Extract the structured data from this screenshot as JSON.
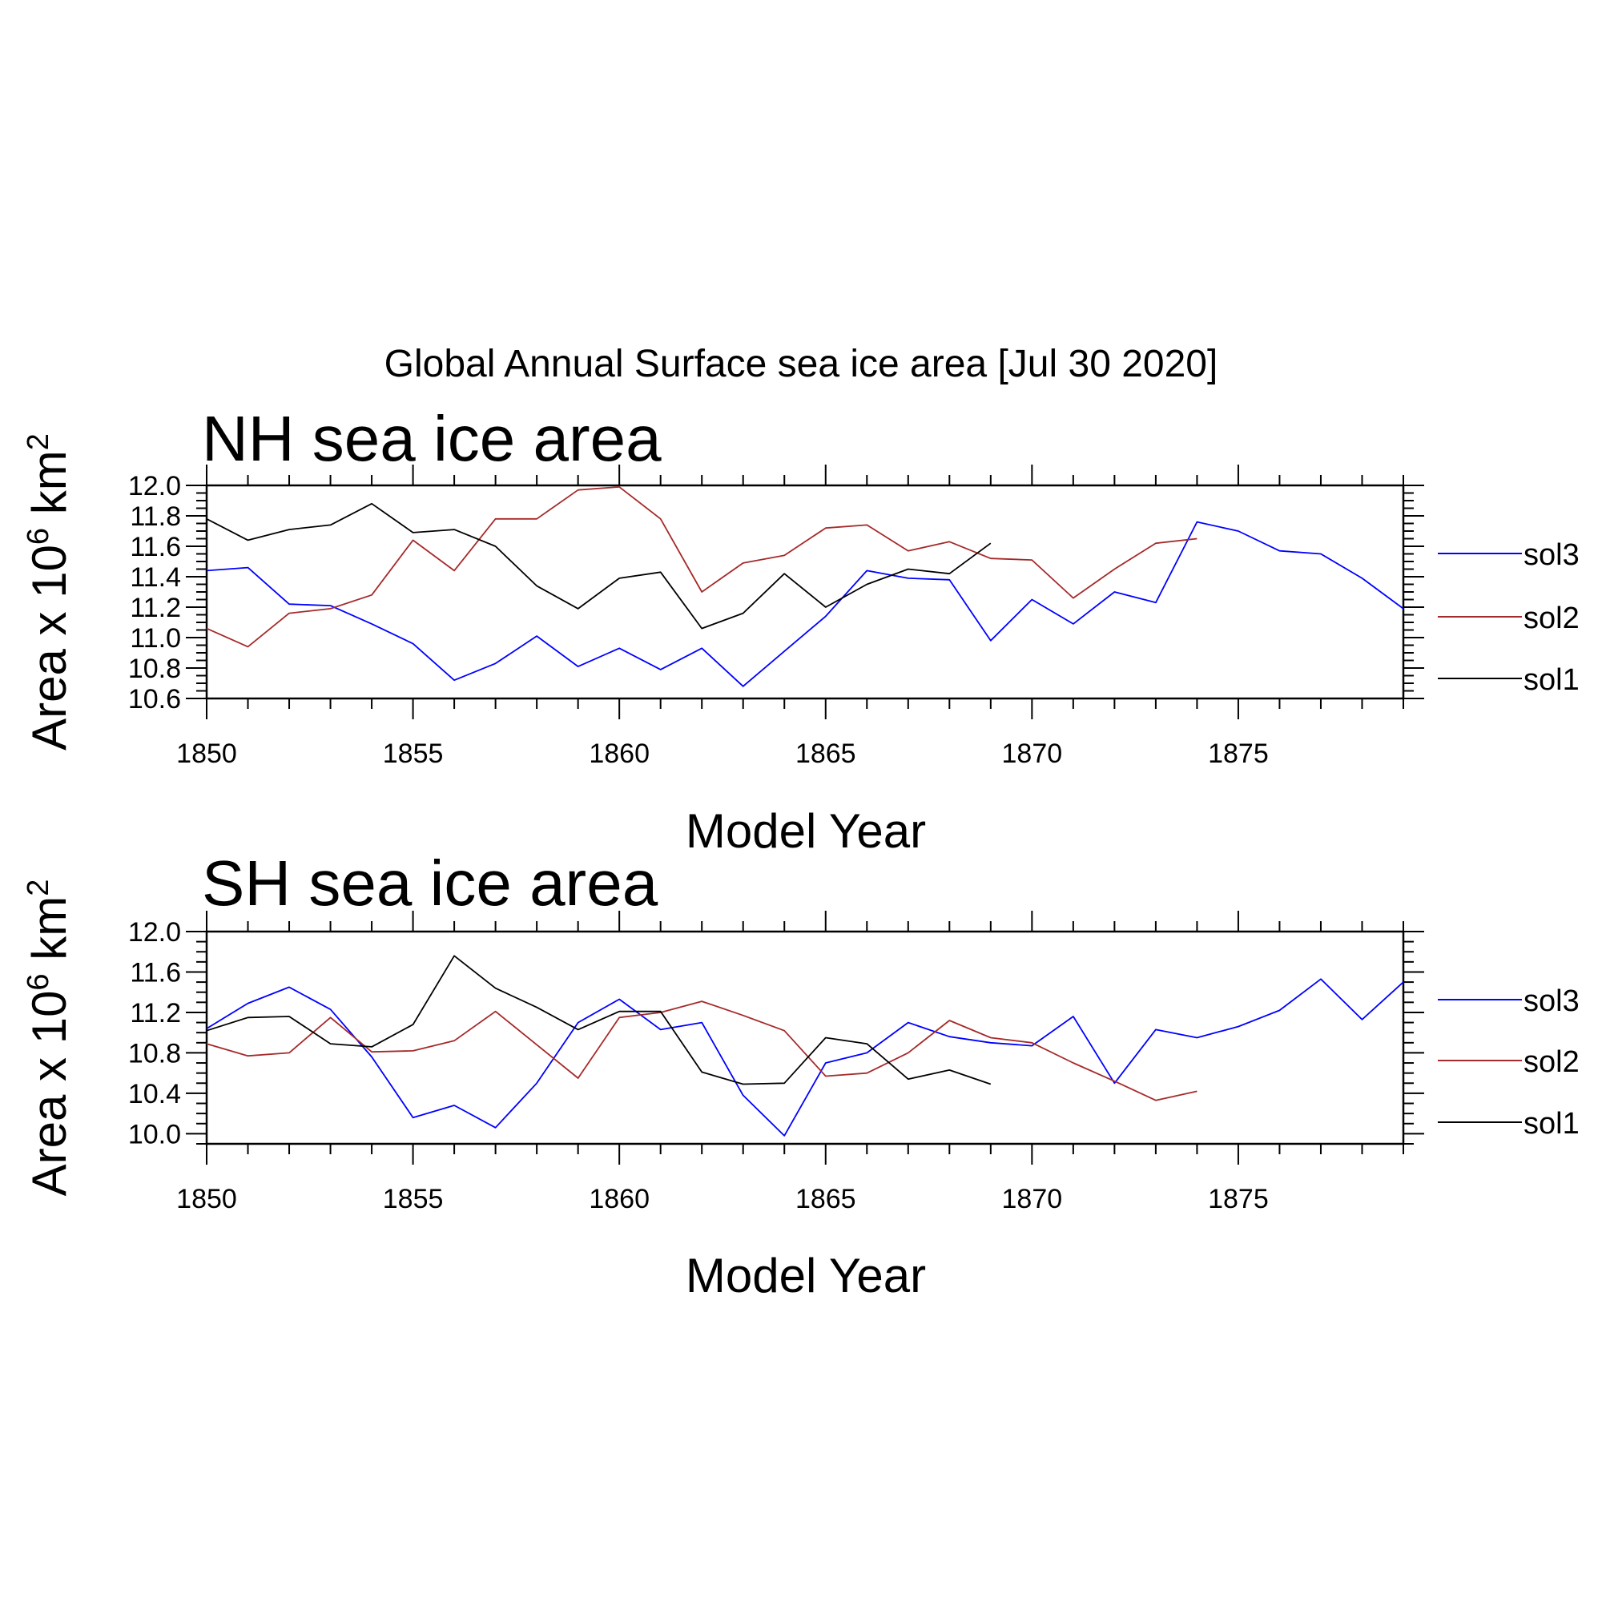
{
  "figure_title": "Global Annual Surface sea ice area [Jul 30 2020]",
  "colors": {
    "sol1": "#000000",
    "sol2": "#a52a2a",
    "sol3": "#0000ff"
  },
  "chart_data": [
    {
      "type": "line",
      "title": "NH sea ice area",
      "xlabel": "Model Year",
      "ylabel": "Area x 10",
      "ylabel_exp": "6",
      "ylabel_unit": " km",
      "ylabel_unit_exp": "2",
      "xlim": [
        1850,
        1879
      ],
      "ylim": [
        10.6,
        12.0
      ],
      "xticks": [
        1850,
        1855,
        1860,
        1865,
        1870,
        1875
      ],
      "xtick_labels": [
        "1850",
        "1855",
        "1860",
        "1865",
        "1870",
        "1875"
      ],
      "yticks": [
        10.6,
        10.8,
        11.0,
        11.2,
        11.4,
        11.6,
        11.8,
        12.0
      ],
      "ytick_labels": [
        "10.6",
        "10.8",
        "11.0",
        "11.2",
        "11.4",
        "11.6",
        "11.8",
        "12.0"
      ],
      "legend": [
        "sol3",
        "sol2",
        "sol1"
      ],
      "series": [
        {
          "name": "sol3",
          "x_start": 1850,
          "values": [
            11.44,
            11.46,
            11.22,
            11.21,
            11.09,
            10.96,
            10.72,
            10.83,
            11.01,
            10.81,
            10.93,
            10.79,
            10.93,
            10.68,
            10.91,
            11.14,
            11.44,
            11.39,
            11.38,
            10.98,
            11.25,
            11.09,
            11.3,
            11.23,
            11.76,
            11.7,
            11.57,
            11.55,
            11.39,
            11.19
          ]
        },
        {
          "name": "sol2",
          "x_start": 1850,
          "values": [
            11.06,
            10.94,
            11.16,
            11.19,
            11.28,
            11.64,
            11.44,
            11.78,
            11.78,
            11.97,
            11.99,
            11.78,
            11.3,
            11.49,
            11.54,
            11.72,
            11.74,
            11.57,
            11.63,
            11.52,
            11.51,
            11.26,
            11.45,
            11.62,
            11.65
          ]
        },
        {
          "name": "sol1",
          "x_start": 1850,
          "values": [
            11.78,
            11.64,
            11.71,
            11.74,
            11.88,
            11.69,
            11.71,
            11.6,
            11.34,
            11.19,
            11.39,
            11.43,
            11.06,
            11.16,
            11.42,
            11.2,
            11.35,
            11.45,
            11.42,
            11.62
          ]
        }
      ]
    },
    {
      "type": "line",
      "title": "SH sea ice area",
      "xlabel": "Model Year",
      "ylabel": "Area x 10",
      "ylabel_exp": "6",
      "ylabel_unit": " km",
      "ylabel_unit_exp": "2",
      "xlim": [
        1850,
        1879
      ],
      "ylim": [
        9.9,
        12.0
      ],
      "xticks": [
        1850,
        1855,
        1860,
        1865,
        1870,
        1875
      ],
      "xtick_labels": [
        "1850",
        "1855",
        "1860",
        "1865",
        "1870",
        "1875"
      ],
      "yticks": [
        10.0,
        10.4,
        10.8,
        11.2,
        11.6,
        12.0
      ],
      "ytick_labels": [
        "10.0",
        "10.4",
        "10.8",
        "11.2",
        "11.6",
        "12.0"
      ],
      "legend": [
        "sol3",
        "sol2",
        "sol1"
      ],
      "series": [
        {
          "name": "sol3",
          "x_start": 1850,
          "values": [
            11.04,
            11.29,
            11.45,
            11.23,
            10.76,
            10.16,
            10.28,
            10.06,
            10.5,
            11.1,
            11.33,
            11.03,
            11.1,
            10.38,
            9.98,
            10.7,
            10.8,
            11.1,
            10.96,
            10.9,
            10.87,
            11.16,
            10.5,
            11.03,
            10.95,
            11.06,
            11.22,
            11.53,
            11.13,
            11.5
          ]
        },
        {
          "name": "sol2",
          "x_start": 1850,
          "values": [
            10.89,
            10.77,
            10.8,
            11.15,
            10.81,
            10.82,
            10.92,
            11.21,
            10.88,
            10.55,
            11.15,
            11.2,
            11.31,
            11.17,
            11.02,
            10.57,
            10.6,
            10.8,
            11.12,
            10.95,
            10.9,
            10.7,
            10.52,
            10.33,
            10.42
          ]
        },
        {
          "name": "sol1",
          "x_start": 1850,
          "values": [
            11.02,
            11.15,
            11.16,
            10.89,
            10.86,
            11.08,
            11.76,
            11.44,
            11.25,
            11.03,
            11.21,
            11.21,
            10.61,
            10.49,
            10.5,
            10.95,
            10.89,
            10.54,
            10.63,
            10.49
          ]
        }
      ]
    }
  ]
}
